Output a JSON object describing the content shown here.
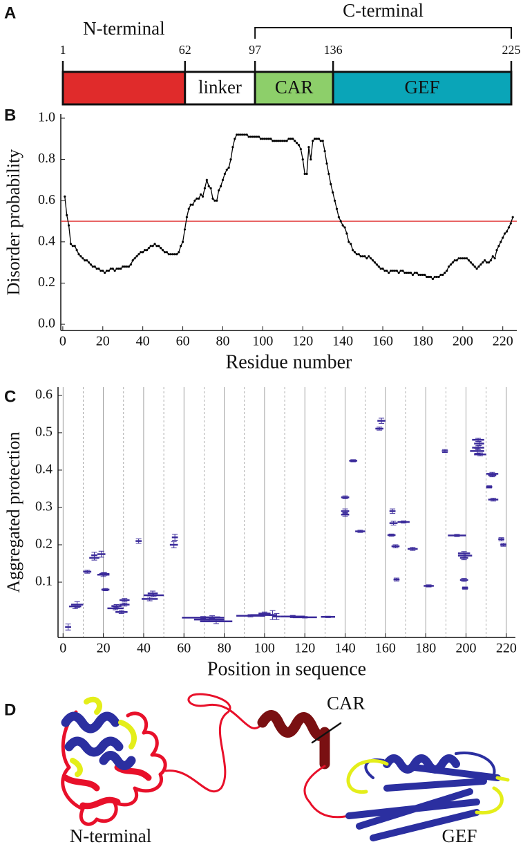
{
  "panels": [
    "A",
    "B",
    "C",
    "D"
  ],
  "chart_data": [
    {
      "type": "domain",
      "xlim": [
        1,
        225
      ],
      "xticks": [
        1,
        62,
        97,
        136,
        225
      ],
      "domains": [
        {
          "start": 1,
          "end": 62,
          "color": "#e02b2b"
        },
        {
          "start": 62,
          "end": 97,
          "name": "linker",
          "color": "#ffffff"
        },
        {
          "start": 97,
          "end": 136,
          "name": "CAR",
          "color": "#8dcf6a"
        },
        {
          "start": 136,
          "end": 225,
          "name": "GEF",
          "color": "#0aa5b8"
        }
      ],
      "regions": [
        {
          "label": "N-terminal",
          "start": 1,
          "end": 62,
          "bracket": false
        },
        {
          "label": "C-terminal",
          "start": 97,
          "end": 225,
          "bracket": true
        }
      ]
    },
    {
      "type": "line",
      "xlabel": "Residue number",
      "ylabel": "Disorder probability",
      "xlim": [
        -1,
        227
      ],
      "ylim": [
        -0.03,
        1.02
      ],
      "xticks": [
        0,
        20,
        40,
        60,
        80,
        100,
        120,
        140,
        160,
        180,
        200,
        220
      ],
      "yticks": [
        {
          "value": 0,
          "label": "0.0"
        },
        0.2,
        0.4,
        0.6,
        0.8,
        {
          "value": 1,
          "label": "1.0"
        }
      ],
      "color": "#000000",
      "threshold": 0.5,
      "threshold_color": "#e03030",
      "x": [
        1,
        2,
        3,
        4,
        5,
        6,
        7,
        8,
        9,
        10,
        11,
        12,
        13,
        14,
        15,
        16,
        17,
        18,
        19,
        20,
        21,
        22,
        23,
        24,
        25,
        26,
        27,
        28,
        29,
        30,
        31,
        32,
        33,
        34,
        35,
        36,
        37,
        38,
        39,
        40,
        41,
        42,
        43,
        44,
        45,
        46,
        47,
        48,
        49,
        50,
        51,
        52,
        53,
        54,
        55,
        56,
        57,
        58,
        59,
        60,
        61,
        62,
        63,
        64,
        65,
        66,
        67,
        68,
        69,
        70,
        71,
        72,
        73,
        74,
        75,
        76,
        77,
        78,
        79,
        80,
        81,
        82,
        83,
        84,
        85,
        86,
        87,
        88,
        89,
        90,
        91,
        92,
        93,
        94,
        95,
        96,
        97,
        98,
        99,
        100,
        101,
        102,
        103,
        104,
        105,
        106,
        107,
        108,
        109,
        110,
        111,
        112,
        113,
        114,
        115,
        116,
        117,
        118,
        119,
        120,
        121,
        122,
        123,
        124,
        125,
        126,
        127,
        128,
        129,
        130,
        131,
        132,
        133,
        134,
        135,
        136,
        137,
        138,
        139,
        140,
        141,
        142,
        143,
        144,
        145,
        146,
        147,
        148,
        149,
        150,
        151,
        152,
        153,
        154,
        155,
        156,
        157,
        158,
        159,
        160,
        161,
        162,
        163,
        164,
        165,
        166,
        167,
        168,
        169,
        170,
        171,
        172,
        173,
        174,
        175,
        176,
        177,
        178,
        179,
        180,
        181,
        182,
        183,
        184,
        185,
        186,
        187,
        188,
        189,
        190,
        191,
        192,
        193,
        194,
        195,
        196,
        197,
        198,
        199,
        200,
        201,
        202,
        203,
        204,
        205,
        206,
        207,
        208,
        209,
        210,
        211,
        212,
        213,
        214,
        215,
        216,
        217,
        218,
        219,
        220,
        221,
        222,
        223,
        224,
        225
      ],
      "values": [
        0.62,
        0.53,
        0.48,
        0.39,
        0.38,
        0.38,
        0.36,
        0.34,
        0.33,
        0.32,
        0.31,
        0.31,
        0.3,
        0.29,
        0.28,
        0.28,
        0.27,
        0.27,
        0.26,
        0.26,
        0.25,
        0.26,
        0.26,
        0.27,
        0.27,
        0.26,
        0.27,
        0.27,
        0.27,
        0.28,
        0.28,
        0.28,
        0.28,
        0.29,
        0.31,
        0.32,
        0.33,
        0.34,
        0.35,
        0.35,
        0.36,
        0.36,
        0.37,
        0.38,
        0.38,
        0.39,
        0.38,
        0.38,
        0.37,
        0.36,
        0.35,
        0.35,
        0.34,
        0.34,
        0.34,
        0.34,
        0.34,
        0.35,
        0.38,
        0.4,
        0.46,
        0.52,
        0.56,
        0.58,
        0.58,
        0.6,
        0.61,
        0.61,
        0.63,
        0.62,
        0.66,
        0.7,
        0.67,
        0.66,
        0.61,
        0.6,
        0.6,
        0.65,
        0.67,
        0.7,
        0.73,
        0.75,
        0.76,
        0.8,
        0.86,
        0.9,
        0.92,
        0.92,
        0.92,
        0.92,
        0.92,
        0.92,
        0.91,
        0.91,
        0.91,
        0.91,
        0.91,
        0.91,
        0.9,
        0.9,
        0.9,
        0.9,
        0.9,
        0.9,
        0.89,
        0.89,
        0.89,
        0.89,
        0.89,
        0.89,
        0.89,
        0.89,
        0.9,
        0.9,
        0.9,
        0.89,
        0.88,
        0.87,
        0.85,
        0.8,
        0.73,
        0.73,
        0.86,
        0.8,
        0.89,
        0.9,
        0.9,
        0.9,
        0.89,
        0.89,
        0.84,
        0.78,
        0.73,
        0.68,
        0.64,
        0.6,
        0.56,
        0.52,
        0.5,
        0.48,
        0.47,
        0.44,
        0.4,
        0.39,
        0.36,
        0.35,
        0.34,
        0.34,
        0.33,
        0.33,
        0.33,
        0.32,
        0.33,
        0.32,
        0.31,
        0.3,
        0.29,
        0.28,
        0.27,
        0.27,
        0.26,
        0.26,
        0.25,
        0.26,
        0.26,
        0.26,
        0.26,
        0.25,
        0.26,
        0.26,
        0.25,
        0.25,
        0.25,
        0.25,
        0.24,
        0.25,
        0.25,
        0.24,
        0.24,
        0.24,
        0.24,
        0.23,
        0.23,
        0.23,
        0.22,
        0.23,
        0.23,
        0.23,
        0.24,
        0.24,
        0.25,
        0.26,
        0.28,
        0.29,
        0.3,
        0.31,
        0.31,
        0.32,
        0.32,
        0.32,
        0.32,
        0.32,
        0.31,
        0.3,
        0.29,
        0.28,
        0.27,
        0.28,
        0.29,
        0.3,
        0.31,
        0.3,
        0.3,
        0.31,
        0.33,
        0.32,
        0.36,
        0.38,
        0.4,
        0.42,
        0.44,
        0.45,
        0.47,
        0.49,
        0.52
      ]
    },
    {
      "type": "errorbar",
      "xlabel": "Position in sequence",
      "ylabel": "Aggregated protection",
      "xlim": [
        -2.5,
        224.5
      ],
      "ylim": [
        -0.048,
        0.622
      ],
      "xticks": [
        0,
        20,
        40,
        60,
        80,
        100,
        120,
        140,
        160,
        180,
        200,
        220
      ],
      "xminor_ticks": [
        10,
        30,
        50,
        70,
        90,
        110,
        130,
        150,
        170,
        190,
        210
      ],
      "yticks": [
        0.1,
        0.2,
        0.3,
        0.4,
        0.5,
        0.6
      ],
      "grid": true,
      "color": "#3a2a9a",
      "starts": [
        1,
        3,
        4,
        10,
        13,
        14,
        17,
        17,
        18,
        19,
        22,
        24,
        26,
        28,
        28,
        36,
        39,
        40,
        42,
        53,
        54,
        59,
        65,
        68,
        70,
        86,
        93,
        97,
        102,
        104,
        108,
        114,
        128,
        138,
        138,
        138,
        142,
        145,
        155,
        156,
        162,
        162,
        161,
        163,
        164,
        166,
        171,
        179,
        188,
        191,
        196,
        197,
        196,
        197,
        198,
        203,
        204,
        203,
        202,
        204,
        210,
        211,
        210,
        211,
        216,
        217
      ],
      "ends": [
        4,
        9,
        10,
        14,
        18,
        17,
        21,
        23,
        23,
        23,
        30,
        29,
        32,
        33,
        33,
        39,
        47,
        50,
        47,
        57,
        57,
        80,
        80,
        84,
        78,
        100,
        105,
        103,
        106,
        108,
        120,
        126,
        135,
        142,
        142,
        142,
        146,
        150,
        159,
        160,
        165,
        166,
        165,
        167,
        167,
        172,
        176,
        184,
        191,
        200,
        202,
        201,
        203,
        201,
        201,
        209,
        209,
        209,
        209,
        210,
        216,
        215,
        213,
        216,
        219,
        220
      ],
      "values": [
        -0.02,
        0.035,
        0.04,
        0.128,
        0.165,
        0.172,
        0.175,
        0.12,
        0.122,
        0.08,
        0.03,
        0.036,
        0.02,
        0.04,
        0.052,
        0.21,
        0.055,
        0.065,
        0.07,
        0.2,
        0.22,
        0.005,
        0.0,
        -0.005,
        0.006,
        0.01,
        0.012,
        0.016,
        0.012,
        0.008,
        0.008,
        0.006,
        0.007,
        0.327,
        0.29,
        0.281,
        0.425,
        0.236,
        0.511,
        0.532,
        0.29,
        0.258,
        0.226,
        0.196,
        0.107,
        0.261,
        0.189,
        0.09,
        0.451,
        0.225,
        0.177,
        0.165,
        0.171,
        0.106,
        0.084,
        0.481,
        0.471,
        0.46,
        0.451,
        0.442,
        0.39,
        0.386,
        0.355,
        0.321,
        0.215,
        0.2
      ],
      "errors": [
        0.008,
        0.006,
        0.008,
        0.004,
        0.006,
        0.008,
        0.008,
        0.005,
        0.004,
        0.003,
        0.004,
        0.004,
        0.004,
        0.004,
        0.004,
        0.006,
        0.005,
        0.004,
        0.006,
        0.008,
        0.008,
        0.003,
        0.006,
        0.006,
        0.004,
        0.003,
        0.003,
        0.004,
        0.012,
        0.008,
        0.003,
        0.002,
        0.002,
        0.004,
        0.006,
        0.005,
        0.003,
        0.003,
        0.004,
        0.007,
        0.006,
        0.005,
        0.003,
        0.004,
        0.004,
        0.003,
        0.004,
        0.003,
        0.004,
        0.003,
        0.005,
        0.005,
        0.006,
        0.004,
        0.003,
        0.004,
        0.005,
        0.005,
        0.006,
        0.004,
        0.004,
        0.004,
        0.003,
        0.004,
        0.004,
        0.004
      ]
    }
  ],
  "structure": {
    "car_label": "CAR",
    "n_label": "N-terminal",
    "gef_label": "GEF"
  }
}
